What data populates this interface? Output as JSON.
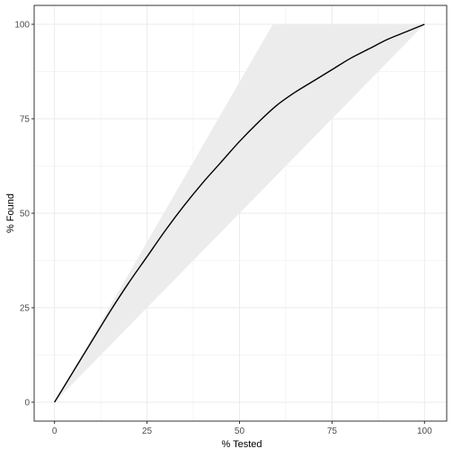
{
  "chart_data": {
    "type": "area",
    "title": "",
    "xlabel": "% Tested",
    "ylabel": "% Found",
    "xlim": [
      -5.5,
      106
    ],
    "ylim": [
      -5,
      105
    ],
    "x_ticks": [
      0,
      25,
      50,
      75,
      100
    ],
    "y_ticks": [
      0,
      25,
      50,
      75,
      100
    ],
    "x_tick_labels": [
      "0",
      "25",
      "50",
      "75",
      "100"
    ],
    "y_tick_labels": [
      "0",
      "25",
      "50",
      "75",
      "100"
    ],
    "grid": true,
    "legend": "none",
    "band_upper": {
      "x": [
        0,
        59,
        100
      ],
      "y": [
        0,
        100,
        100
      ]
    },
    "band_lower": {
      "x": [
        0,
        100
      ],
      "y": [
        0,
        100
      ]
    },
    "series": [
      {
        "x": [
          0,
          5,
          10,
          15,
          20,
          25,
          30,
          35,
          40,
          45,
          50,
          55,
          60,
          65,
          70,
          75,
          80,
          85,
          90,
          95,
          100
        ],
        "y": [
          0,
          8,
          16,
          24,
          31.5,
          38.5,
          45.5,
          52,
          58,
          63.5,
          69,
          74,
          78.5,
          82,
          85,
          88,
          91,
          93.5,
          96,
          98,
          100
        ]
      }
    ]
  },
  "colors": {
    "background": "#ffffff",
    "band_fill": "#ebebeb",
    "grid": "#ebebeb",
    "line": "#000000",
    "frame": "#333333",
    "tick_text": "#4d4d4d"
  }
}
